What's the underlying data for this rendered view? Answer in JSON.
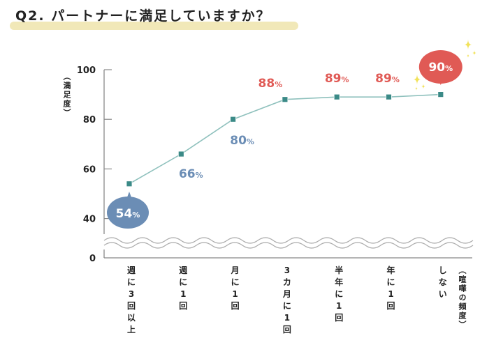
{
  "chart_data": {
    "type": "line",
    "title": "Q2. パートナーに満足していますか？",
    "ylabel": "（満足度）",
    "xlabel": "（喧嘩の頻度）",
    "ylim": [
      0,
      100
    ],
    "y_axis_break": [
      0,
      40
    ],
    "yticks": [
      "0",
      "40",
      "60",
      "80",
      "100"
    ],
    "categories": [
      "週に3回以上",
      "週に1回",
      "月に1回",
      "3カ月に1回",
      "半年に1回",
      "年に1回",
      "しない"
    ],
    "values": [
      54,
      66,
      80,
      88,
      89,
      89,
      90
    ],
    "data_labels": [
      "54",
      "66",
      "80",
      "88",
      "89",
      "89",
      "90"
    ],
    "label_unit": "%",
    "grid": false,
    "colors": {
      "line": "#8fc1bd",
      "marker": "#3b8a87",
      "low": "#6b8db5",
      "high": "#e05a55",
      "title_highlight": "#f1e8b8",
      "sparkle": "#f2e25a"
    }
  }
}
